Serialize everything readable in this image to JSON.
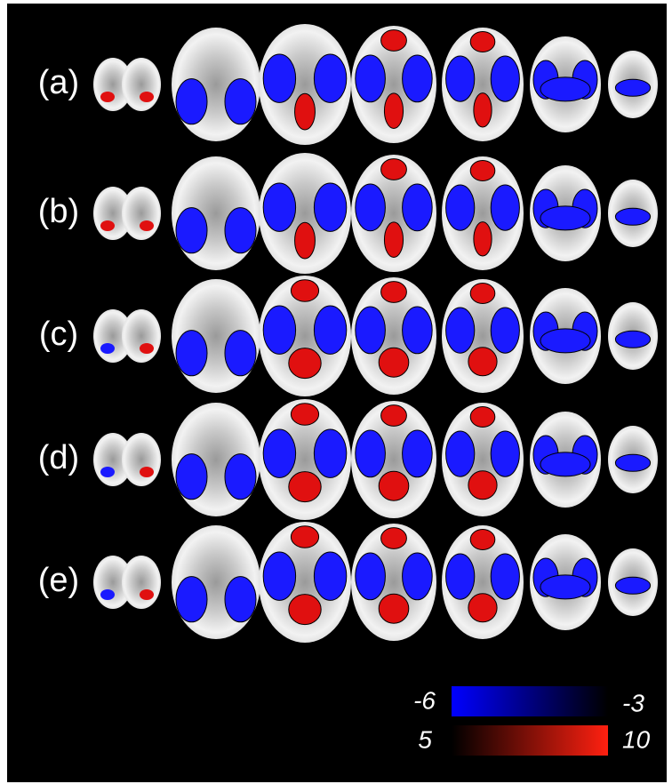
{
  "rows": [
    "(a)",
    "(b)",
    "(c)",
    "(d)",
    "(e)"
  ],
  "colorbar": {
    "negative": {
      "min": -6,
      "max": -3
    },
    "positive": {
      "min": 5,
      "max": 10
    }
  }
}
